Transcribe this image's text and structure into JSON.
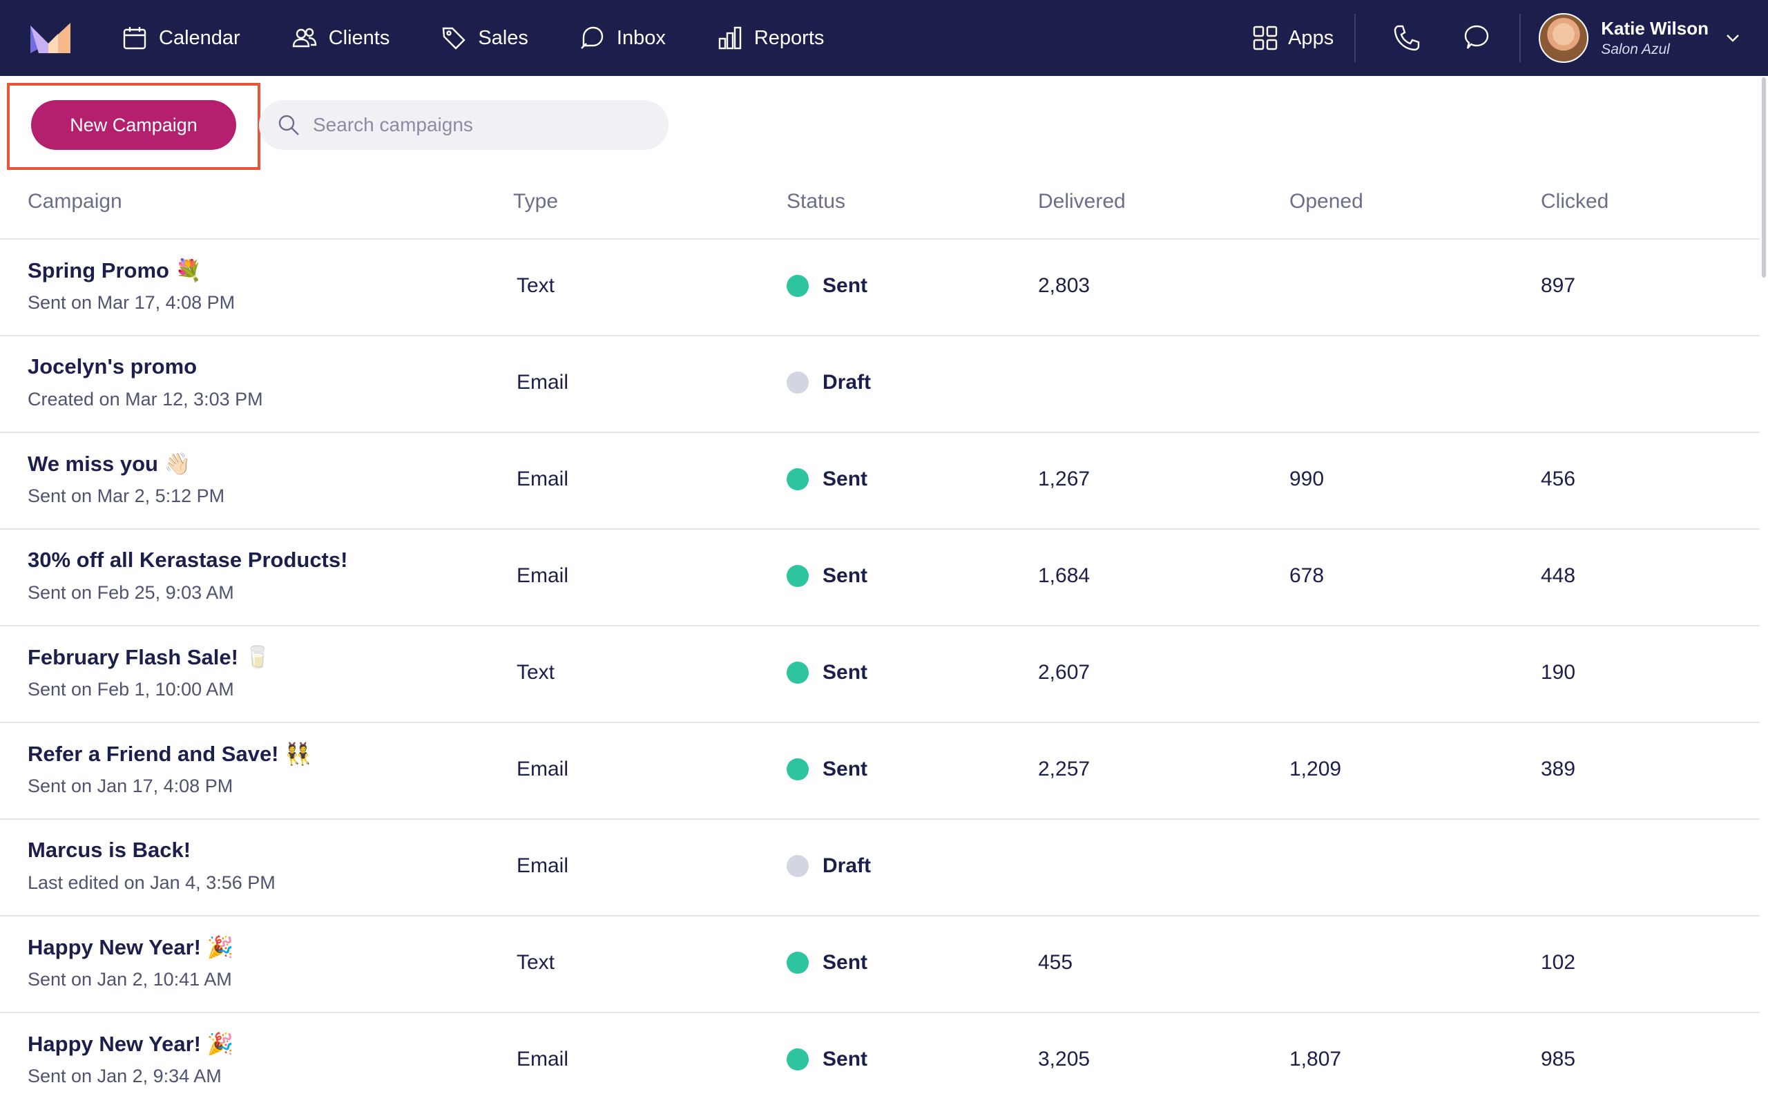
{
  "nav": {
    "items": [
      {
        "label": "Calendar",
        "icon": "calendar-icon"
      },
      {
        "label": "Clients",
        "icon": "clients-icon"
      },
      {
        "label": "Sales",
        "icon": "tag-icon"
      },
      {
        "label": "Inbox",
        "icon": "inbox-icon"
      },
      {
        "label": "Reports",
        "icon": "bar-chart-icon"
      }
    ],
    "apps_label": "Apps",
    "user": {
      "name": "Katie Wilson",
      "salon": "Salon Azul"
    }
  },
  "toolbar": {
    "new_campaign_label": "New Campaign",
    "search_placeholder": "Search campaigns"
  },
  "table": {
    "headers": {
      "campaign": "Campaign",
      "type": "Type",
      "status": "Status",
      "delivered": "Delivered",
      "opened": "Opened",
      "clicked": "Clicked"
    },
    "rows": [
      {
        "name": "Spring Promo 💐",
        "sub": "Sent on Mar 17, 4:08 PM",
        "type": "Text",
        "status": "Sent",
        "delivered": "2,803",
        "opened": "",
        "clicked": "897"
      },
      {
        "name": "Jocelyn's promo",
        "sub": "Created on Mar 12, 3:03 PM",
        "type": "Email",
        "status": "Draft",
        "delivered": "",
        "opened": "",
        "clicked": ""
      },
      {
        "name": "We miss you 👋🏻",
        "sub": "Sent on Mar 2, 5:12 PM",
        "type": "Email",
        "status": "Sent",
        "delivered": "1,267",
        "opened": "990",
        "clicked": "456"
      },
      {
        "name": "30% off all Kerastase Products!",
        "sub": "Sent on Feb 25, 9:03 AM",
        "type": "Email",
        "status": "Sent",
        "delivered": "1,684",
        "opened": "678",
        "clicked": "448"
      },
      {
        "name": "February Flash Sale! 🥛",
        "sub": "Sent on Feb 1, 10:00 AM",
        "type": "Text",
        "status": "Sent",
        "delivered": "2,607",
        "opened": "",
        "clicked": "190"
      },
      {
        "name": "Refer a Friend and Save! 👯",
        "sub": "Sent on Jan 17, 4:08 PM",
        "type": "Email",
        "status": "Sent",
        "delivered": "2,257",
        "opened": "1,209",
        "clicked": "389"
      },
      {
        "name": "Marcus is Back!",
        "sub": "Last edited on Jan 4, 3:56 PM",
        "type": "Email",
        "status": "Draft",
        "delivered": "",
        "opened": "",
        "clicked": ""
      },
      {
        "name": "Happy New Year! 🎉",
        "sub": "Sent on Jan 2, 10:41 AM",
        "type": "Text",
        "status": "Sent",
        "delivered": "455",
        "opened": "",
        "clicked": "102"
      },
      {
        "name": "Happy New Year! 🎉",
        "sub": "Sent on Jan 2, 9:34 AM",
        "type": "Email",
        "status": "Sent",
        "delivered": "3,205",
        "opened": "1,807",
        "clicked": "985"
      }
    ]
  },
  "colors": {
    "nav_bg": "#1c1e4b",
    "primary_button": "#b41f6e",
    "highlight_border": "#e8553d",
    "status_sent": "#2ec4a0",
    "status_draft": "#d3d5e3"
  }
}
